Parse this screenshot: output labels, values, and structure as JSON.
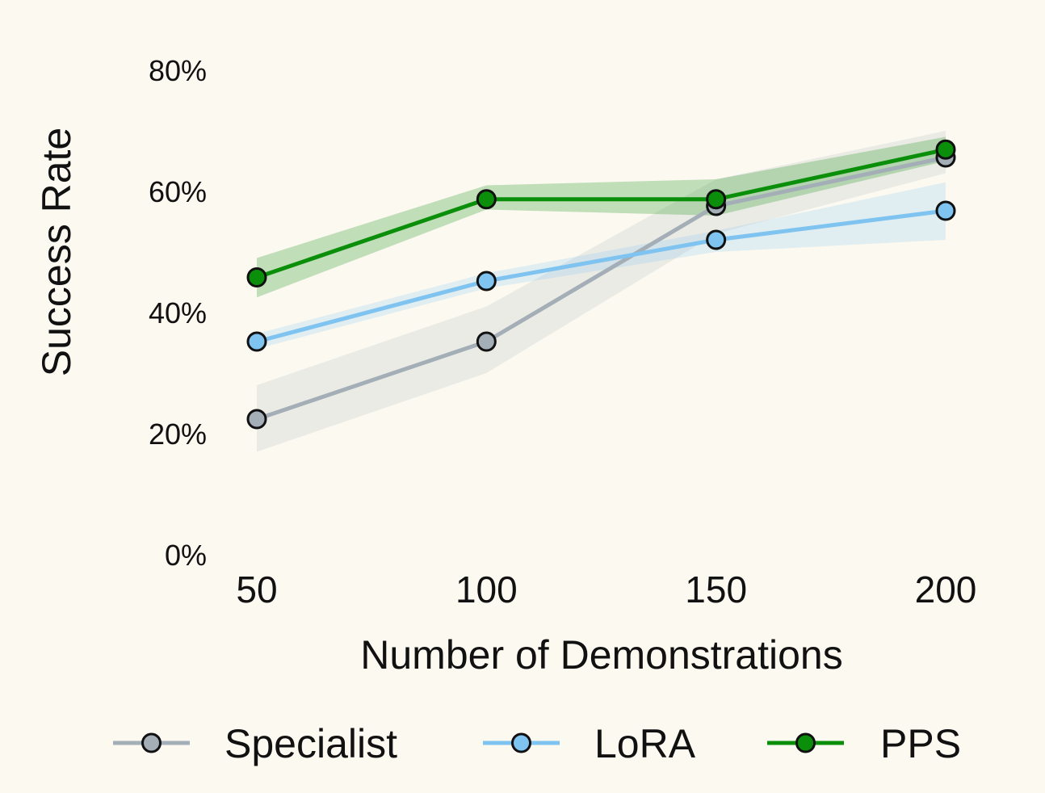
{
  "chart_data": {
    "type": "line",
    "xlabel": "Number of Demonstrations",
    "ylabel": "Success Rate",
    "x": [
      50,
      100,
      150,
      200
    ],
    "x_tick_labels": [
      "50",
      "100",
      "150",
      "200"
    ],
    "ylim": [
      0,
      80
    ],
    "y_ticks": [
      0,
      20,
      40,
      60,
      80
    ],
    "y_tick_labels": [
      "0%",
      "20%",
      "40%",
      "60%",
      "80%"
    ],
    "grid": false,
    "legend_position": "bottom",
    "series": [
      {
        "name": "Specialist",
        "color": "#a3aeb7",
        "values": [
          22.4,
          35.2,
          57.6,
          65.6
        ],
        "band_lower": [
          17,
          30,
          53,
          63
        ],
        "band_upper": [
          28,
          41,
          62,
          70
        ]
      },
      {
        "name": "LoRA",
        "color": "#7fc3f0",
        "values": [
          35.2,
          45.2,
          52.0,
          56.8
        ],
        "band_lower": [
          34,
          44,
          50,
          52
        ],
        "band_upper": [
          36.5,
          46.5,
          53.5,
          61.5
        ]
      },
      {
        "name": "PPS",
        "color": "#0b8f0b",
        "values": [
          45.8,
          58.7,
          58.7,
          66.9
        ],
        "band_lower": [
          42.5,
          57,
          56,
          65
        ],
        "band_upper": [
          49,
          61,
          62,
          69
        ]
      }
    ]
  }
}
